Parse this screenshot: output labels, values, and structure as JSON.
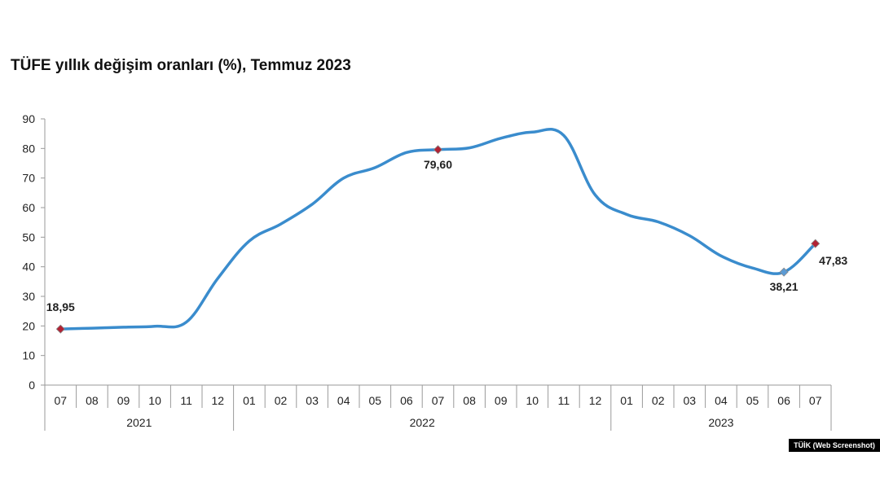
{
  "title": "TÜFE yıllık değişim oranları (%), Temmuz 2023",
  "credit": "TÜİK (Web Screenshot)",
  "colors": {
    "line": "#3a8ccd",
    "marker_highlight": "#b22234",
    "marker_latest_low": "#5b9bd5",
    "axis": "#9a9a9a",
    "text": "#222222"
  },
  "chart_data": {
    "type": "line",
    "title": "TÜFE yıllık değişim oranları (%), Temmuz 2023",
    "xlabel": "",
    "ylabel": "",
    "ylim": [
      0,
      90
    ],
    "yticks": [
      0,
      10,
      20,
      30,
      40,
      50,
      60,
      70,
      80,
      90
    ],
    "grid": false,
    "categories": [
      "07",
      "08",
      "09",
      "10",
      "11",
      "12",
      "01",
      "02",
      "03",
      "04",
      "05",
      "06",
      "07",
      "08",
      "09",
      "10",
      "11",
      "12",
      "01",
      "02",
      "03",
      "04",
      "05",
      "06",
      "07"
    ],
    "years": [
      {
        "label": "2021",
        "start": 0,
        "end": 5
      },
      {
        "label": "2022",
        "start": 6,
        "end": 17
      },
      {
        "label": "2023",
        "start": 18,
        "end": 24
      }
    ],
    "series": [
      {
        "values": [
          18.95,
          19.25,
          19.58,
          19.89,
          21.31,
          36.08,
          48.69,
          54.44,
          61.14,
          69.97,
          73.5,
          78.62,
          79.6,
          80.21,
          83.45,
          85.51,
          84.39,
          64.27,
          57.68,
          55.18,
          50.51,
          43.68,
          39.59,
          38.21,
          47.83
        ]
      }
    ],
    "data_labels": [
      {
        "index": 0,
        "text": "18,95",
        "marker": "marker_highlight"
      },
      {
        "index": 12,
        "text": "79,60",
        "marker": "marker_highlight"
      },
      {
        "index": 23,
        "text": "38,21",
        "marker": "marker_latest_low"
      },
      {
        "index": 24,
        "text": "47,83",
        "marker": "marker_highlight"
      }
    ]
  }
}
